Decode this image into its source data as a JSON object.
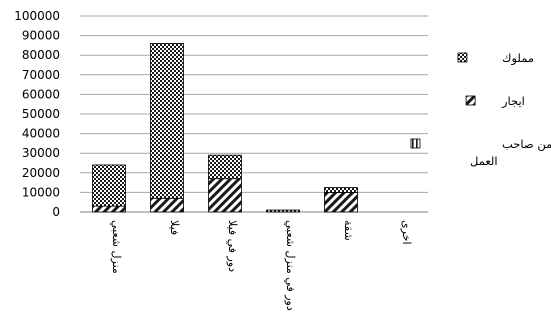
{
  "chart_data": {
    "type": "bar",
    "stacked": true,
    "categories": [
      "منزل شعبي",
      "فيلا",
      "دور في فيلا",
      "دور في منزل شعبي",
      "شقة",
      "اخرى"
    ],
    "series": [
      {
        "name": "مقدم من صاحب العمل",
        "pattern": "vertical-stripes",
        "values": [
          0,
          0,
          0,
          0,
          0,
          0
        ]
      },
      {
        "name": "ايجار",
        "pattern": "diagonal",
        "values": [
          3000,
          7000,
          17000,
          0,
          10000,
          0
        ]
      },
      {
        "name": "مملوك",
        "pattern": "checker",
        "values": [
          21000,
          79000,
          12000,
          1000,
          2500,
          0
        ]
      }
    ],
    "ylim": [
      0,
      100000
    ],
    "yticks": [
      "0",
      "10000",
      "20000",
      "30000",
      "40000",
      "50000",
      "60000",
      "70000",
      "80000",
      "90000",
      "100000"
    ],
    "grid": true,
    "legend": "right",
    "legend_order": [
      "مملوك",
      "ايجار",
      "مقدم من صاحب العمل"
    ]
  }
}
